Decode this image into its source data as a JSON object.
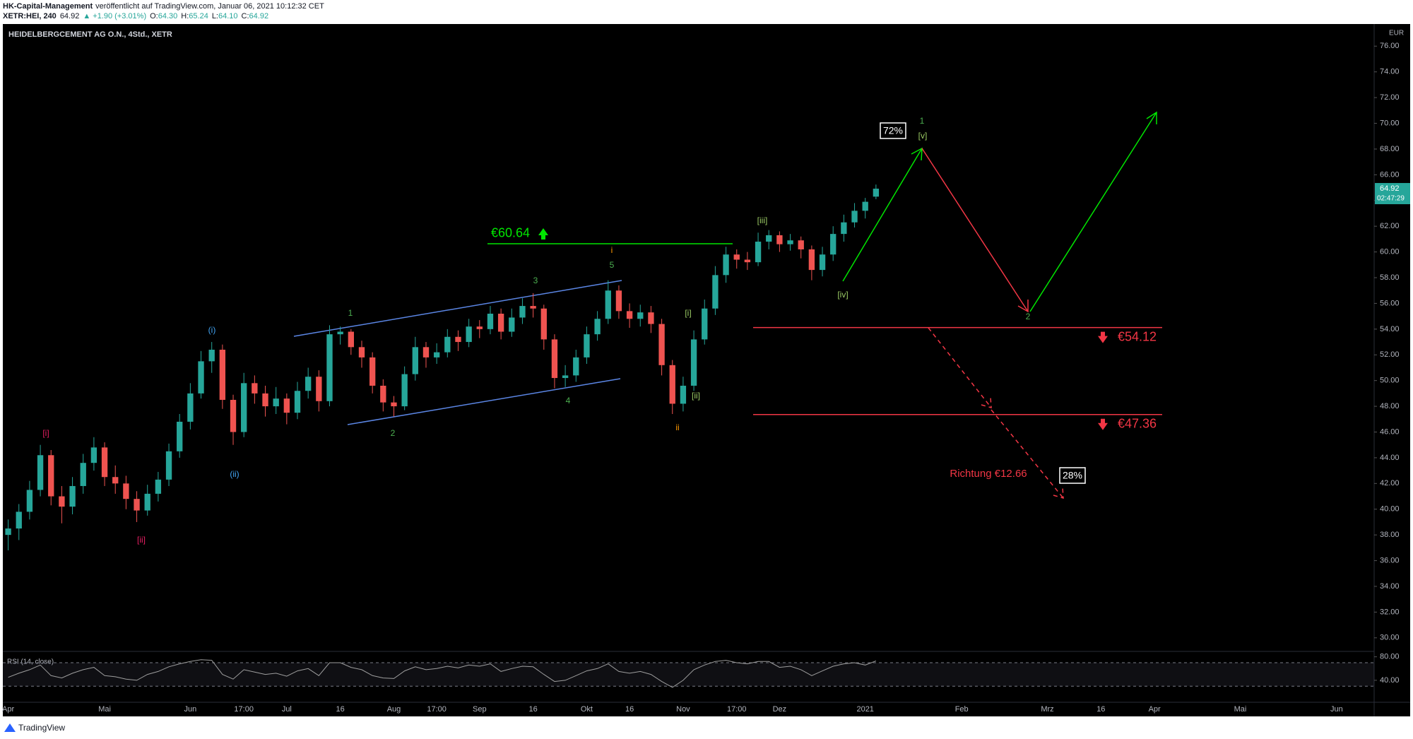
{
  "header": {
    "author": "HK-Capital-Management",
    "published": "veröffentlicht auf TradingView.com, Januar 06, 2021 10:12:32 CET",
    "symbol": "XETR:HEI, 240",
    "last": "64.92",
    "change": "▲ +1.90 (+3.01%)",
    "ohlc": [
      {
        "label": "O:",
        "value": "64.30"
      },
      {
        "label": "H:",
        "value": "65.24"
      },
      {
        "label": "L:",
        "value": "64.10"
      },
      {
        "label": "C:",
        "value": "64.92"
      }
    ]
  },
  "chart_data": {
    "type": "candlestick",
    "title": "HEIDELBERGCEMENT AG O.N., 4Std., XETR",
    "currency": "EUR",
    "categories": [
      "Apr",
      null,
      null,
      null,
      null,
      null,
      null,
      null,
      null,
      "Mai",
      null,
      null,
      null,
      null,
      null,
      null,
      null,
      "Jun",
      null,
      null,
      null,
      null,
      "17:00",
      null,
      null,
      null,
      "Jul",
      null,
      null,
      null,
      null,
      "16",
      null,
      null,
      null,
      null,
      "Aug",
      null,
      null,
      null,
      "17:00",
      null,
      null,
      null,
      "Sep",
      null,
      null,
      null,
      null,
      "16",
      null,
      null,
      null,
      null,
      "Okt",
      null,
      null,
      null,
      "16",
      null,
      null,
      null,
      null,
      "Nov",
      null,
      null,
      null,
      null,
      "17:00",
      null,
      null,
      null,
      "Dez",
      null,
      null,
      null,
      null,
      null,
      null,
      null,
      "2021",
      null,
      null,
      null,
      null,
      null,
      null,
      null,
      null,
      "Feb",
      null,
      null,
      null,
      null,
      null,
      null,
      null,
      "Mrz",
      null,
      null,
      null,
      null,
      "16",
      null,
      null,
      null,
      null,
      "Apr",
      null,
      null,
      null,
      null,
      null,
      null,
      null,
      "Mai",
      null,
      null,
      null,
      null,
      null,
      null,
      null,
      null,
      "Jun",
      null,
      null,
      null
    ],
    "open": [
      38.0,
      38.5,
      39.8,
      41.5,
      44.2,
      41.0,
      40.2,
      41.8,
      43.6,
      44.8,
      42.5,
      42.0,
      40.8,
      39.9,
      41.2,
      42.3,
      44.5,
      46.8,
      49.0,
      51.5,
      52.4,
      48.5,
      46.0,
      49.8,
      49.0,
      48.0,
      48.6,
      47.5,
      49.2,
      50.3,
      48.4,
      53.6,
      53.8,
      52.6,
      51.8,
      49.6,
      48.3,
      48.0,
      50.5,
      52.6,
      51.8,
      52.2,
      53.4,
      53.0,
      54.2,
      54.0,
      55.2,
      53.8,
      54.9,
      55.8,
      55.6,
      53.2,
      50.2,
      50.4,
      51.8,
      53.6,
      54.8,
      57.0,
      55.4,
      54.8,
      55.3,
      54.4,
      51.2,
      48.2,
      49.6,
      53.2,
      55.6,
      58.2,
      59.8,
      59.4,
      59.2,
      60.8,
      61.3,
      60.6,
      60.9,
      60.2,
      58.6,
      59.8,
      61.4,
      62.3,
      63.2,
      64.3,
      null,
      null,
      null,
      null,
      null,
      null,
      null,
      null,
      null,
      null,
      null,
      null,
      null,
      null,
      null,
      null,
      null,
      null,
      null,
      null,
      null,
      null,
      null,
      null,
      null,
      null,
      null,
      null,
      null,
      null,
      null,
      null,
      null,
      null,
      null,
      null,
      null,
      null,
      null,
      null,
      null,
      null,
      null,
      null,
      null,
      null
    ],
    "high": [
      39.2,
      40.4,
      42.2,
      45.0,
      44.6,
      41.8,
      42.5,
      44.3,
      45.6,
      45.2,
      43.4,
      42.6,
      41.4,
      41.9,
      42.9,
      45.1,
      47.4,
      49.8,
      52.3,
      53.0,
      52.8,
      48.9,
      50.6,
      50.4,
      49.6,
      49.5,
      49.0,
      49.9,
      51.0,
      50.8,
      54.3,
      54.2,
      54.0,
      53.1,
      52.2,
      50.1,
      48.8,
      51.1,
      53.4,
      53.0,
      52.9,
      54.0,
      53.9,
      54.8,
      54.7,
      55.8,
      55.6,
      55.6,
      56.4,
      56.8,
      55.9,
      53.6,
      51.2,
      52.4,
      54.2,
      55.4,
      57.8,
      57.4,
      56.0,
      55.9,
      55.8,
      54.8,
      51.6,
      50.3,
      53.9,
      56.3,
      58.9,
      60.4,
      60.2,
      60.0,
      61.5,
      61.7,
      61.6,
      61.4,
      61.2,
      60.5,
      60.4,
      62.0,
      62.9,
      63.8,
      64.2,
      65.24,
      null,
      null,
      null,
      null,
      null,
      null,
      null,
      null,
      null,
      null,
      null,
      null,
      null,
      null,
      null,
      null,
      null,
      null,
      null,
      null,
      null,
      null,
      null,
      null,
      null,
      null,
      null,
      null,
      null,
      null,
      null,
      null,
      null,
      null,
      null,
      null,
      null,
      null,
      null,
      null,
      null,
      null,
      null,
      null,
      null,
      null
    ],
    "low": [
      36.8,
      37.6,
      39.2,
      41.0,
      40.3,
      38.9,
      39.6,
      41.2,
      43.0,
      41.8,
      41.2,
      40.0,
      39.0,
      39.5,
      40.6,
      41.8,
      44.0,
      46.2,
      48.6,
      50.6,
      47.8,
      45.0,
      45.6,
      48.2,
      47.2,
      47.4,
      46.6,
      47.0,
      48.6,
      47.6,
      48.0,
      52.8,
      52.0,
      51.0,
      49.0,
      47.6,
      47.2,
      47.7,
      50.0,
      51.0,
      51.3,
      51.8,
      52.3,
      52.6,
      53.3,
      53.6,
      53.2,
      53.4,
      54.4,
      54.9,
      52.4,
      49.4,
      49.5,
      49.9,
      51.3,
      53.1,
      54.4,
      54.8,
      54.1,
      54.2,
      53.7,
      50.4,
      47.4,
      47.6,
      49.2,
      52.8,
      55.1,
      57.6,
      58.7,
      58.6,
      58.9,
      60.2,
      60.0,
      60.1,
      59.5,
      57.8,
      58.1,
      59.3,
      60.8,
      61.9,
      62.6,
      64.1,
      null,
      null,
      null,
      null,
      null,
      null,
      null,
      null,
      null,
      null,
      null,
      null,
      null,
      null,
      null,
      null,
      null,
      null,
      null,
      null,
      null,
      null,
      null,
      null,
      null,
      null,
      null,
      null,
      null,
      null,
      null,
      null,
      null,
      null,
      null,
      null,
      null,
      null,
      null,
      null,
      null,
      null,
      null,
      null,
      null,
      null
    ],
    "close": [
      38.5,
      39.8,
      41.5,
      44.2,
      41.0,
      40.2,
      41.8,
      43.6,
      44.8,
      42.5,
      42.0,
      40.8,
      39.9,
      41.2,
      42.3,
      44.5,
      46.8,
      49.0,
      51.5,
      52.4,
      48.5,
      46.0,
      49.8,
      49.0,
      48.0,
      48.6,
      47.5,
      49.2,
      50.3,
      48.4,
      53.6,
      53.8,
      52.6,
      51.8,
      49.6,
      48.3,
      48.0,
      50.5,
      52.6,
      51.8,
      52.2,
      53.4,
      53.0,
      54.2,
      54.0,
      55.2,
      53.8,
      54.9,
      55.8,
      55.6,
      53.2,
      50.2,
      50.4,
      51.8,
      53.6,
      54.8,
      57.0,
      55.4,
      54.8,
      55.3,
      54.4,
      51.2,
      48.2,
      49.6,
      53.2,
      55.6,
      58.2,
      59.8,
      59.4,
      59.2,
      60.8,
      61.3,
      60.6,
      60.9,
      60.2,
      58.6,
      59.8,
      61.4,
      62.3,
      63.2,
      63.9,
      64.92,
      null,
      null,
      null,
      null,
      null,
      null,
      null,
      null,
      null,
      null,
      null,
      null,
      null,
      null,
      null,
      null,
      null,
      null,
      null,
      null,
      null,
      null,
      null,
      null,
      null,
      null,
      null,
      null,
      null,
      null,
      null,
      null,
      null,
      null,
      null,
      null,
      null,
      null,
      null,
      null,
      null,
      null,
      null,
      null,
      null,
      null
    ],
    "up_color": "#26a69a",
    "down_color": "#ef5350",
    "ylim": [
      29,
      77.5
    ],
    "yticks": [
      {
        "value": 30,
        "label": "30.00"
      },
      {
        "value": 32,
        "label": "32.00"
      },
      {
        "value": 34,
        "label": "34.00"
      },
      {
        "value": 36,
        "label": "36.00"
      },
      {
        "value": 38,
        "label": "38.00"
      },
      {
        "value": 40,
        "label": "40.00"
      },
      {
        "value": 42,
        "label": "42.00"
      },
      {
        "value": 44,
        "label": "44.00"
      },
      {
        "value": 46,
        "label": "46.00"
      },
      {
        "value": 48,
        "label": "48.00"
      },
      {
        "value": 50,
        "label": "50.00"
      },
      {
        "value": 52,
        "label": "52.00"
      },
      {
        "value": 54,
        "label": "54.00"
      },
      {
        "value": 56,
        "label": "56.00"
      },
      {
        "value": 58,
        "label": "58.00"
      },
      {
        "value": 60,
        "label": "60.00"
      },
      {
        "value": 62,
        "label": "62.00"
      },
      {
        "value": 64,
        "label": "64.00"
      },
      {
        "value": 66,
        "label": "66.00"
      },
      {
        "value": 68,
        "label": "68.00"
      },
      {
        "value": 70,
        "label": "70.00"
      },
      {
        "value": 72,
        "label": "72.00"
      },
      {
        "value": 74,
        "label": "74.00"
      },
      {
        "value": 76,
        "label": "76.00"
      }
    ],
    "grid": false,
    "last_price": 64.92,
    "countdown": "02:47:29",
    "levels": [
      {
        "value": 60.64,
        "label": "€60.64",
        "color": "#00e600"
      },
      {
        "value": 54.12,
        "label": "€54.12",
        "color": "#f23645"
      },
      {
        "value": 47.36,
        "label": "€47.36",
        "color": "#f23645"
      }
    ],
    "annotations": [
      {
        "text": "[i]",
        "color": "#e91e63"
      },
      {
        "text": "[ii]",
        "color": "#e91e63"
      },
      {
        "text": "(i)",
        "color": "#42a5f5"
      },
      {
        "text": "(ii)",
        "color": "#42a5f5"
      },
      {
        "text": "1",
        "color": "#4caf50"
      },
      {
        "text": "2",
        "color": "#4caf50"
      },
      {
        "text": "3",
        "color": "#4caf50"
      },
      {
        "text": "4",
        "color": "#4caf50"
      },
      {
        "text": "5",
        "color": "#4caf50"
      },
      {
        "text": "i",
        "color": "#ff9800"
      },
      {
        "text": "ii",
        "color": "#ff9800"
      },
      {
        "text": "[i]",
        "color": "#9ccc65"
      },
      {
        "text": "[ii]",
        "color": "#9ccc65"
      },
      {
        "text": "[iii]",
        "color": "#9ccc65"
      },
      {
        "text": "[iv]",
        "color": "#9ccc65"
      },
      {
        "text": "[v]",
        "color": "#9ccc65"
      },
      {
        "text": "1",
        "color": "#4caf50"
      },
      {
        "text": "2",
        "color": "#4caf50"
      },
      {
        "text": "Richtung €12.66",
        "color": "#f23645"
      }
    ],
    "boxes": [
      "72%",
      "28%"
    ],
    "rsi": {
      "title": "RSI (14, close)",
      "color": "#9e9e9e",
      "ylim": [
        5,
        88
      ],
      "yticks": [
        {
          "value": 80,
          "label": "80.00"
        },
        {
          "value": 40,
          "label": "40.00"
        }
      ],
      "levels": [
        70,
        30
      ],
      "values": [
        45,
        52,
        58,
        66,
        48,
        44,
        52,
        58,
        62,
        48,
        46,
        42,
        40,
        50,
        55,
        63,
        68,
        72,
        75,
        74,
        50,
        42,
        58,
        54,
        50,
        52,
        47,
        56,
        60,
        48,
        70,
        70,
        62,
        58,
        48,
        44,
        43,
        56,
        63,
        58,
        60,
        64,
        61,
        66,
        64,
        68,
        55,
        60,
        64,
        63,
        50,
        38,
        40,
        48,
        56,
        60,
        68,
        55,
        52,
        55,
        50,
        38,
        28,
        40,
        58,
        66,
        72,
        74,
        70,
        68,
        72,
        72,
        62,
        64,
        58,
        48,
        56,
        64,
        68,
        70,
        66,
        73,
        null,
        null,
        null,
        null,
        null,
        null,
        null,
        null,
        null,
        null,
        null,
        null,
        null,
        null,
        null,
        null,
        null,
        null,
        null,
        null,
        null,
        null,
        null,
        null,
        null,
        null,
        null,
        null,
        null,
        null,
        null,
        null,
        null,
        null,
        null,
        null,
        null,
        null,
        null,
        null,
        null,
        null,
        null,
        null,
        null,
        null
      ]
    }
  },
  "watermark": "TradingView"
}
